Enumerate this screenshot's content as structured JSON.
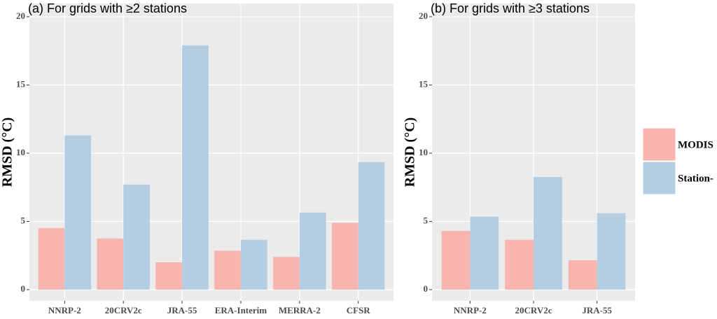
{
  "chart_data": [
    {
      "type": "bar",
      "title": "(a) For grids with ≥2 stations",
      "ylabel": "RMSD (°C)",
      "categories": [
        "NNRP-2",
        "20CRV2c",
        "JRA-55",
        "ERA-Interim",
        "MERRA-2",
        "CFSR"
      ],
      "series": [
        {
          "color": "#f8b4ae",
          "values": [
            4.5,
            3.75,
            2.0,
            2.85,
            2.4,
            4.9
          ]
        },
        {
          "color": "#b3cde3",
          "values": [
            11.3,
            7.7,
            17.9,
            3.65,
            5.65,
            9.35
          ]
        }
      ],
      "ylim": [
        -0.82,
        20.97
      ],
      "yticks": [
        0,
        5,
        10,
        15,
        20
      ],
      "grid": true
    },
    {
      "type": "bar",
      "title": "(b) For grids with ≥3 stations",
      "ylabel": "RMSD (°C)",
      "categories": [
        "NNRP-2",
        "20CRV2c",
        "JRA-55"
      ],
      "series": [
        {
          "name": "MODIS",
          "color": "#f8b4ae",
          "values": [
            4.3,
            3.65,
            2.15
          ]
        },
        {
          "name": "Station-",
          "color": "#b3cde3",
          "values": [
            5.35,
            8.25,
            5.6
          ]
        }
      ],
      "ylim": [
        -0.82,
        20.97
      ],
      "yticks": [
        0,
        5,
        10,
        15,
        20
      ],
      "grid": true
    }
  ]
}
